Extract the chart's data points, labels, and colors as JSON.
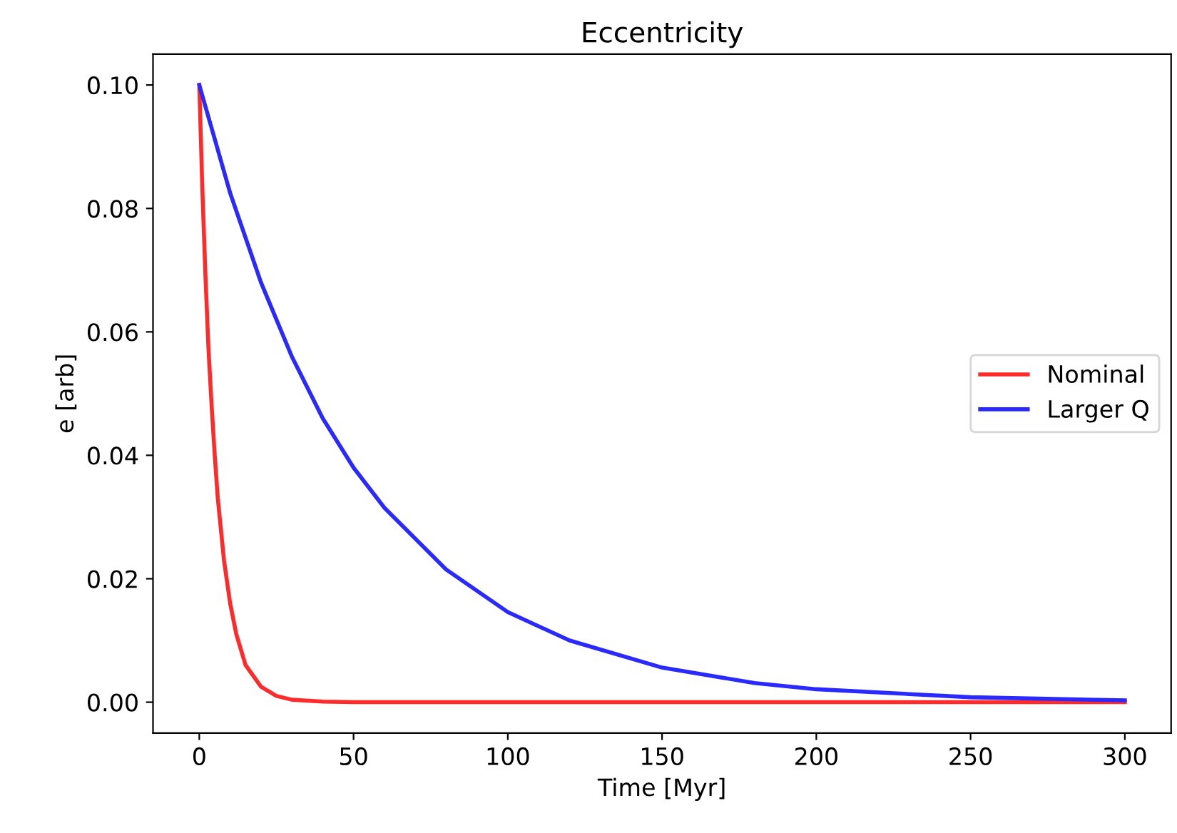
{
  "chart_data": {
    "type": "line",
    "title": "Eccentricity",
    "xlabel": "Time [Myr]",
    "ylabel": "e [arb]",
    "xlim": [
      -15,
      315
    ],
    "ylim": [
      -0.005,
      0.105
    ],
    "xticks": [
      0,
      50,
      100,
      150,
      200,
      250,
      300
    ],
    "yticks": [
      {
        "value": 0,
        "label": "0.00"
      },
      {
        "value": 0.02,
        "label": "0.02"
      },
      {
        "value": 0.04,
        "label": "0.04"
      },
      {
        "value": 0.06,
        "label": "0.06"
      },
      {
        "value": 0.08,
        "label": "0.08"
      },
      {
        "value": 0.1,
        "label": "0.10"
      }
    ],
    "grid": false,
    "legend": "right",
    "marker": "none",
    "line_style": "solid",
    "series": [
      {
        "name": "Nominal",
        "color": "#ff2a2a",
        "x": [
          0,
          1,
          2,
          3,
          4,
          5,
          6,
          8,
          10,
          12,
          15,
          20,
          25,
          30,
          40,
          50,
          100,
          200,
          300
        ],
        "values": [
          0.1,
          0.083,
          0.069,
          0.057,
          0.048,
          0.04,
          0.033,
          0.023,
          0.016,
          0.011,
          0.006,
          0.0025,
          0.001,
          0.0004,
          0.0001,
          0,
          0,
          0,
          0
        ]
      },
      {
        "name": "Larger Q",
        "color": "#2a2aff",
        "x": [
          0,
          10,
          20,
          30,
          40,
          50,
          60,
          80,
          100,
          120,
          150,
          180,
          200,
          250,
          300
        ],
        "values": [
          0.1,
          0.0825,
          0.068,
          0.056,
          0.046,
          0.038,
          0.0315,
          0.0215,
          0.0146,
          0.01,
          0.0056,
          0.0031,
          0.0021,
          0.0008,
          0.0003
        ]
      }
    ]
  }
}
